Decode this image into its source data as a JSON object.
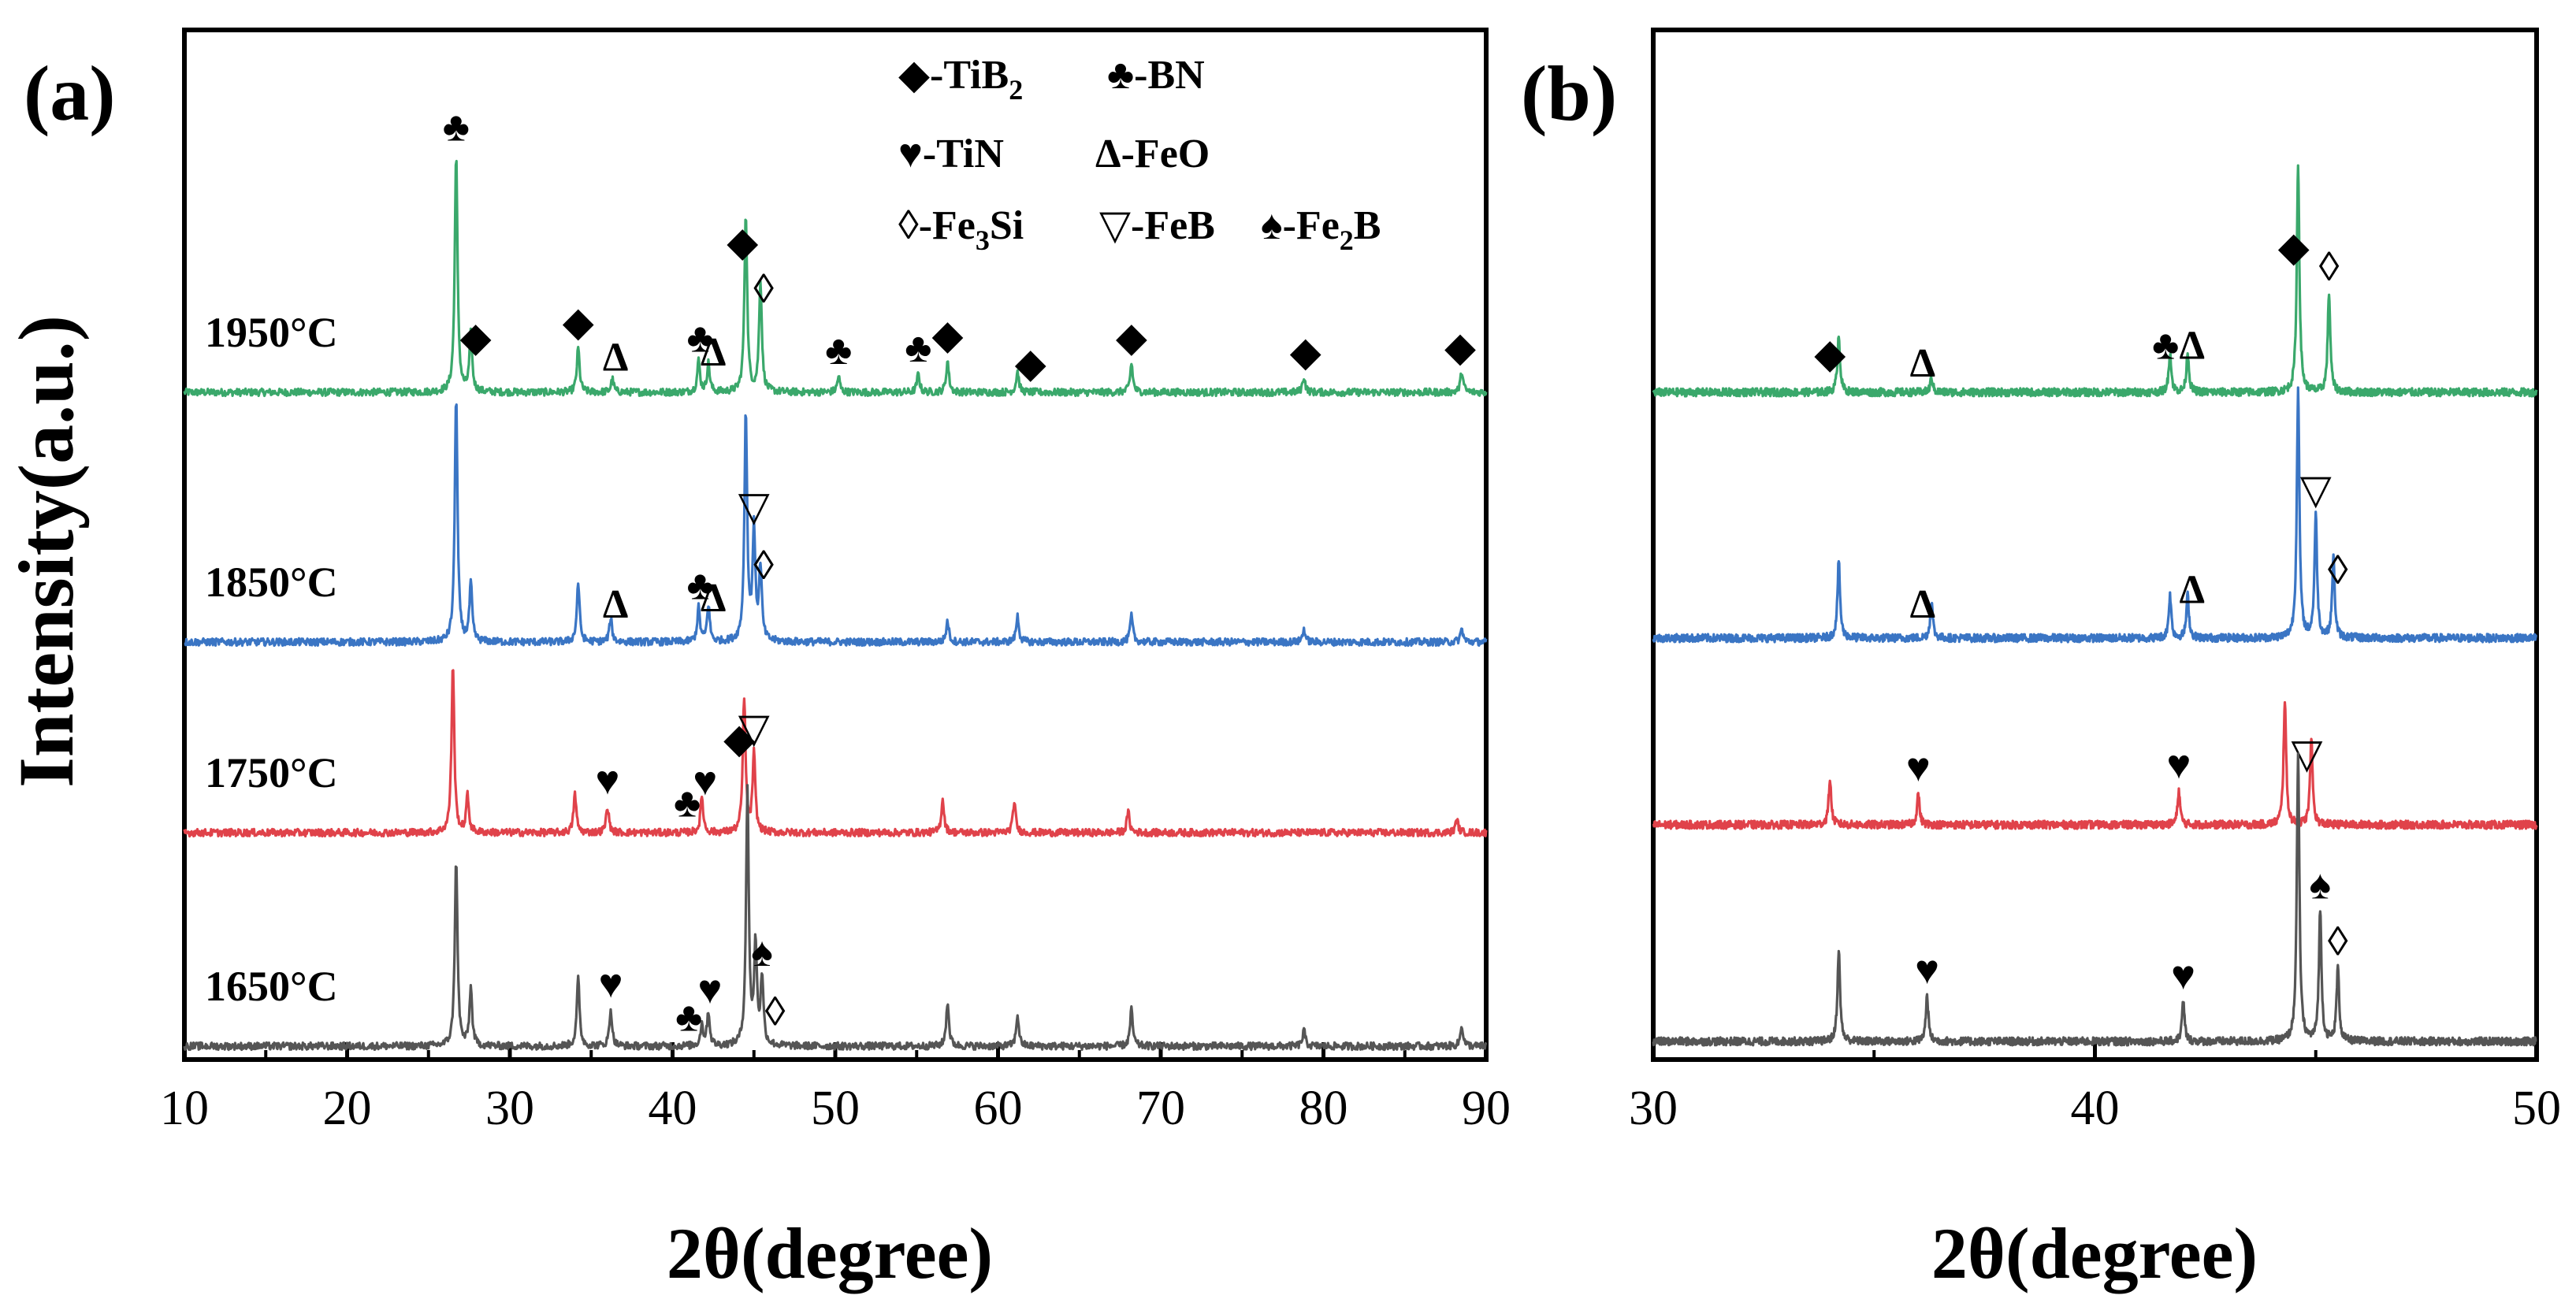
{
  "chart_data": [
    {
      "panel_label": "(a)",
      "type": "line",
      "xlabel": "2θ(degree)",
      "ylabel": "Intensity(a.u.)",
      "xlim": [
        10,
        90
      ],
      "xticks": [
        "10",
        "20",
        "30",
        "40",
        "50",
        "60",
        "70",
        "80",
        "90"
      ],
      "legend": {
        "placement": "top-center",
        "entries": [
          {
            "marker": "◆",
            "text": "-TiB",
            "sub": "2"
          },
          {
            "marker": "♣",
            "text": "-BN",
            "sub": ""
          },
          {
            "marker": "♥",
            "text": "-TiN",
            "sub": ""
          },
          {
            "marker": "Δ",
            "text": "-FeO",
            "sub": ""
          },
          {
            "marker": "◊",
            "text": "-Fe",
            "sub": "3",
            "after": "Si"
          },
          {
            "marker": "▽",
            "text": "-FeB",
            "sub": ""
          },
          {
            "marker": "♠",
            "text": "-Fe",
            "sub": "2",
            "after": "B"
          }
        ]
      },
      "series": [
        {
          "name": "1950°C",
          "color": "#3aa86b",
          "peaks": [
            {
              "x": 26.7,
              "h": 0.92
            },
            {
              "x": 27.6,
              "h": 0.22
            },
            {
              "x": 34.2,
              "h": 0.17
            },
            {
              "x": 36.3,
              "h": 0.05
            },
            {
              "x": 41.6,
              "h": 0.12
            },
            {
              "x": 42.2,
              "h": 0.11
            },
            {
              "x": 44.5,
              "h": 0.69
            },
            {
              "x": 45.4,
              "h": 0.43
            },
            {
              "x": 50.2,
              "h": 0.06
            },
            {
              "x": 55.1,
              "h": 0.07
            },
            {
              "x": 56.9,
              "h": 0.12
            },
            {
              "x": 61.2,
              "h": 0.08
            },
            {
              "x": 68.2,
              "h": 0.11
            },
            {
              "x": 78.8,
              "h": 0.06
            },
            {
              "x": 88.5,
              "h": 0.08
            }
          ],
          "annotations": [
            {
              "label": "♣",
              "x": 26.7
            },
            {
              "label": "◆",
              "x": 27.9
            },
            {
              "label": "◆",
              "x": 34.2
            },
            {
              "label": "Δ",
              "x": 36.5
            },
            {
              "label": "♣",
              "x": 41.7
            },
            {
              "label": "Δ",
              "x": 42.5
            },
            {
              "label": "◆",
              "x": 44.3
            },
            {
              "label": "◊",
              "x": 45.6
            },
            {
              "label": "♣",
              "x": 50.2
            },
            {
              "label": "♣",
              "x": 55.1
            },
            {
              "label": "◆",
              "x": 56.9
            },
            {
              "label": "◆",
              "x": 62.0
            },
            {
              "label": "◆",
              "x": 68.2
            },
            {
              "label": "◆",
              "x": 78.9
            },
            {
              "label": "◆",
              "x": 88.4
            }
          ]
        },
        {
          "name": "1850°C",
          "color": "#3a75c4",
          "peaks": [
            {
              "x": 26.7,
              "h": 0.95
            },
            {
              "x": 27.6,
              "h": 0.22
            },
            {
              "x": 34.2,
              "h": 0.23
            },
            {
              "x": 36.2,
              "h": 0.09
            },
            {
              "x": 41.6,
              "h": 0.13
            },
            {
              "x": 42.2,
              "h": 0.14
            },
            {
              "x": 44.5,
              "h": 0.88
            },
            {
              "x": 45.0,
              "h": 0.42
            },
            {
              "x": 45.4,
              "h": 0.28
            },
            {
              "x": 56.9,
              "h": 0.08
            },
            {
              "x": 61.2,
              "h": 0.1
            },
            {
              "x": 68.2,
              "h": 0.1
            },
            {
              "x": 78.8,
              "h": 0.05
            },
            {
              "x": 88.5,
              "h": 0.05
            }
          ],
          "annotations": [
            {
              "label": "Δ",
              "x": 36.5
            },
            {
              "label": "♣",
              "x": 41.7
            },
            {
              "label": "Δ",
              "x": 42.5
            },
            {
              "label": "▽",
              "x": 45.0
            },
            {
              "label": "◊",
              "x": 45.6
            }
          ]
        },
        {
          "name": "1750°C",
          "color": "#e0424a",
          "peaks": [
            {
              "x": 26.5,
              "h": 0.65
            },
            {
              "x": 27.4,
              "h": 0.14
            },
            {
              "x": 34.0,
              "h": 0.15
            },
            {
              "x": 36.0,
              "h": 0.1
            },
            {
              "x": 41.8,
              "h": 0.14
            },
            {
              "x": 44.4,
              "h": 0.52
            },
            {
              "x": 45.0,
              "h": 0.3
            },
            {
              "x": 56.6,
              "h": 0.13
            },
            {
              "x": 61.0,
              "h": 0.12
            },
            {
              "x": 68.0,
              "h": 0.08
            },
            {
              "x": 88.2,
              "h": 0.05
            }
          ],
          "annotations": [
            {
              "label": "♥",
              "x": 36.0
            },
            {
              "label": "♣",
              "x": 40.9
            },
            {
              "label": "♥",
              "x": 42.0
            },
            {
              "label": "◆",
              "x": 44.1
            },
            {
              "label": "▽",
              "x": 45.0
            }
          ]
        },
        {
          "name": "1650°C",
          "color": "#555555",
          "peaks": [
            {
              "x": 26.7,
              "h": 0.72
            },
            {
              "x": 27.6,
              "h": 0.22
            },
            {
              "x": 34.2,
              "h": 0.26
            },
            {
              "x": 36.2,
              "h": 0.14
            },
            {
              "x": 41.8,
              "h": 0.08
            },
            {
              "x": 42.2,
              "h": 0.13
            },
            {
              "x": 44.6,
              "h": 0.98
            },
            {
              "x": 45.1,
              "h": 0.38
            },
            {
              "x": 45.5,
              "h": 0.26
            },
            {
              "x": 56.9,
              "h": 0.17
            },
            {
              "x": 61.2,
              "h": 0.12
            },
            {
              "x": 68.2,
              "h": 0.14
            },
            {
              "x": 78.8,
              "h": 0.06
            },
            {
              "x": 88.5,
              "h": 0.08
            }
          ],
          "annotations": [
            {
              "label": "♥",
              "x": 36.2
            },
            {
              "label": "♣",
              "x": 41.0
            },
            {
              "label": "♥",
              "x": 42.3
            },
            {
              "label": "♠",
              "x": 45.5
            },
            {
              "label": "◊",
              "x": 46.3
            }
          ]
        }
      ]
    },
    {
      "panel_label": "(b)",
      "type": "line",
      "xlabel": "2θ(degree)",
      "xlim": [
        30,
        50
      ],
      "xticks": [
        "30",
        "40",
        "50"
      ],
      "series": [
        {
          "name": "1950°C",
          "color": "#3aa86b",
          "peaks": [
            {
              "x": 34.2,
              "h": 0.2
            },
            {
              "x": 36.3,
              "h": 0.05
            },
            {
              "x": 41.7,
              "h": 0.14
            },
            {
              "x": 42.1,
              "h": 0.14
            },
            {
              "x": 44.6,
              "h": 0.8
            },
            {
              "x": 45.3,
              "h": 0.35
            }
          ],
          "annotations": [
            {
              "label": "◆",
              "x": 34.0
            },
            {
              "label": "Δ",
              "x": 36.1
            },
            {
              "label": "♣",
              "x": 41.6
            },
            {
              "label": "Δ",
              "x": 42.2
            },
            {
              "label": "◆",
              "x": 44.5
            },
            {
              "label": "◊",
              "x": 45.3
            }
          ]
        },
        {
          "name": "1850°C",
          "color": "#3a75c4",
          "peaks": [
            {
              "x": 34.2,
              "h": 0.27
            },
            {
              "x": 36.3,
              "h": 0.13
            },
            {
              "x": 41.7,
              "h": 0.15
            },
            {
              "x": 42.1,
              "h": 0.15
            },
            {
              "x": 44.6,
              "h": 0.87
            },
            {
              "x": 45.0,
              "h": 0.43
            },
            {
              "x": 45.4,
              "h": 0.28
            }
          ],
          "annotations": [
            {
              "label": "Δ",
              "x": 36.1
            },
            {
              "label": "Δ",
              "x": 42.2
            },
            {
              "label": "▽",
              "x": 45.0
            },
            {
              "label": "◊",
              "x": 45.5
            }
          ]
        },
        {
          "name": "1750°C",
          "color": "#e0424a",
          "peaks": [
            {
              "x": 34.0,
              "h": 0.16
            },
            {
              "x": 36.0,
              "h": 0.11
            },
            {
              "x": 41.9,
              "h": 0.12
            },
            {
              "x": 44.3,
              "h": 0.44
            },
            {
              "x": 44.9,
              "h": 0.3
            }
          ],
          "annotations": [
            {
              "label": "♥",
              "x": 36.0
            },
            {
              "label": "♥",
              "x": 41.9
            },
            {
              "label": "▽",
              "x": 44.8
            }
          ]
        },
        {
          "name": "1650°C",
          "color": "#555555",
          "peaks": [
            {
              "x": 34.2,
              "h": 0.32
            },
            {
              "x": 36.2,
              "h": 0.16
            },
            {
              "x": 42.0,
              "h": 0.14
            },
            {
              "x": 44.6,
              "h": 1.0
            },
            {
              "x": 45.1,
              "h": 0.46
            },
            {
              "x": 45.5,
              "h": 0.26
            }
          ],
          "annotations": [
            {
              "label": "♥",
              "x": 36.2
            },
            {
              "label": "♥",
              "x": 42.0
            },
            {
              "label": "♠",
              "x": 45.1
            },
            {
              "label": "◊",
              "x": 45.5
            }
          ]
        }
      ]
    }
  ]
}
